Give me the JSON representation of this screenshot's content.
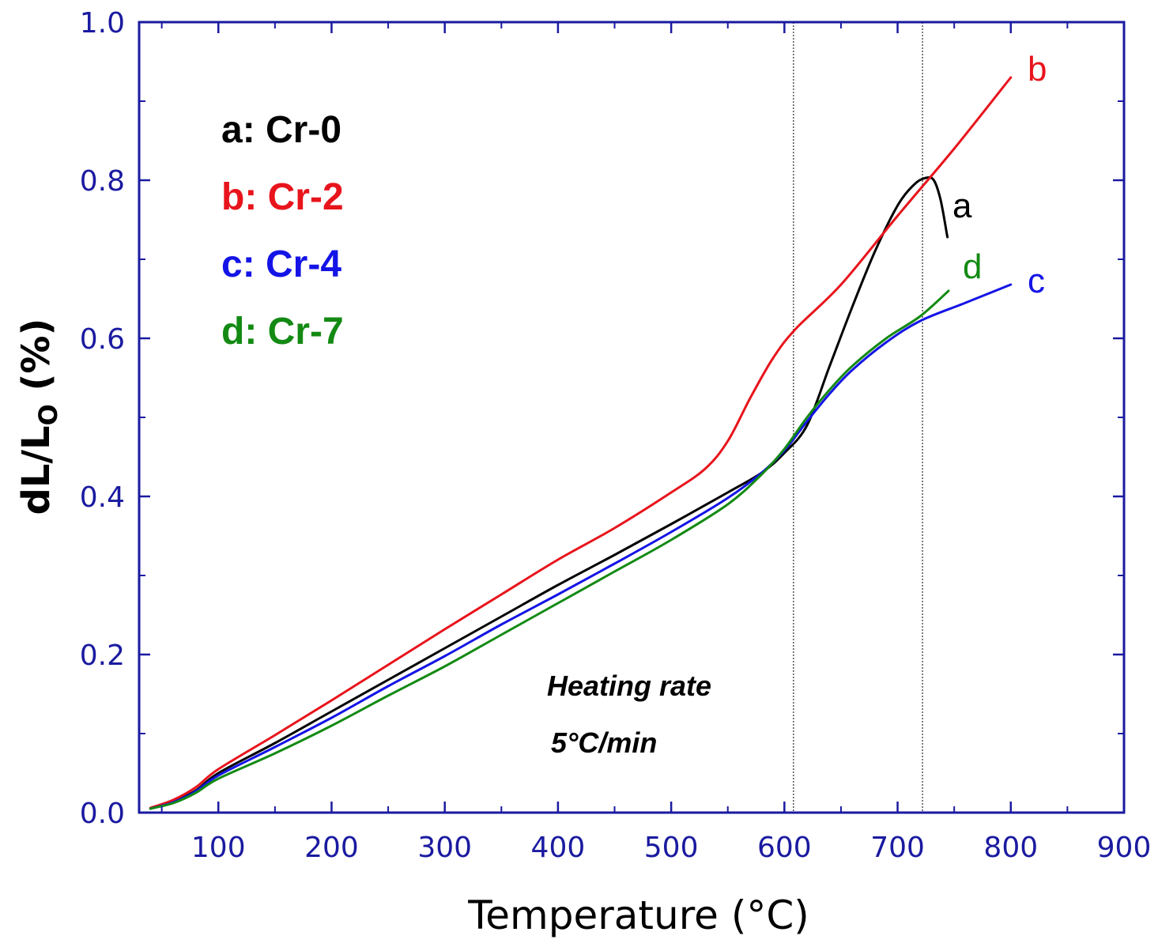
{
  "chart_data": {
    "type": "line",
    "xlabel": "Temperature (°C)",
    "ylabel": {
      "main": "dL/L",
      "sub": "O",
      "suffix": " (%)"
    },
    "xlim": [
      30,
      900
    ],
    "ylim": [
      0.0,
      1.0
    ],
    "xticks": [
      100,
      200,
      300,
      400,
      500,
      600,
      700,
      800,
      900
    ],
    "yticks": [
      0.0,
      0.2,
      0.4,
      0.6,
      0.8,
      1.0
    ],
    "xtick_labels": [
      "100",
      "200",
      "300",
      "400",
      "500",
      "600",
      "700",
      "800",
      "900"
    ],
    "ytick_labels": [
      "0.0",
      "0.2",
      "0.4",
      "0.6",
      "0.8",
      "1.0"
    ],
    "vertical_reference_lines": [
      608,
      722
    ],
    "legend_position": "top-left",
    "series": [
      {
        "name": "a: Cr-0",
        "curve_label": "a",
        "color": "#000000",
        "points": [
          [
            40,
            0.005
          ],
          [
            60,
            0.014
          ],
          [
            80,
            0.028
          ],
          [
            100,
            0.05
          ],
          [
            150,
            0.088
          ],
          [
            200,
            0.128
          ],
          [
            250,
            0.168
          ],
          [
            300,
            0.208
          ],
          [
            350,
            0.248
          ],
          [
            400,
            0.288
          ],
          [
            450,
            0.326
          ],
          [
            500,
            0.365
          ],
          [
            550,
            0.405
          ],
          [
            580,
            0.43
          ],
          [
            600,
            0.455
          ],
          [
            620,
            0.49
          ],
          [
            640,
            0.565
          ],
          [
            660,
            0.64
          ],
          [
            680,
            0.71
          ],
          [
            700,
            0.768
          ],
          [
            715,
            0.795
          ],
          [
            725,
            0.803
          ],
          [
            732,
            0.8
          ],
          [
            738,
            0.775
          ],
          [
            744,
            0.728
          ]
        ]
      },
      {
        "name": "b: Cr-2",
        "curve_label": "b",
        "color": "#e8141c",
        "points": [
          [
            40,
            0.006
          ],
          [
            60,
            0.016
          ],
          [
            80,
            0.032
          ],
          [
            100,
            0.055
          ],
          [
            150,
            0.098
          ],
          [
            200,
            0.142
          ],
          [
            250,
            0.187
          ],
          [
            300,
            0.232
          ],
          [
            350,
            0.276
          ],
          [
            400,
            0.32
          ],
          [
            450,
            0.36
          ],
          [
            500,
            0.405
          ],
          [
            530,
            0.435
          ],
          [
            550,
            0.47
          ],
          [
            570,
            0.525
          ],
          [
            590,
            0.575
          ],
          [
            610,
            0.612
          ],
          [
            650,
            0.668
          ],
          [
            700,
            0.755
          ],
          [
            750,
            0.84
          ],
          [
            800,
            0.93
          ]
        ]
      },
      {
        "name": "c: Cr-4",
        "curve_label": "c",
        "color": "#1414e6",
        "points": [
          [
            40,
            0.005
          ],
          [
            60,
            0.013
          ],
          [
            80,
            0.027
          ],
          [
            100,
            0.047
          ],
          [
            150,
            0.083
          ],
          [
            200,
            0.12
          ],
          [
            250,
            0.16
          ],
          [
            300,
            0.198
          ],
          [
            350,
            0.238
          ],
          [
            400,
            0.276
          ],
          [
            450,
            0.315
          ],
          [
            500,
            0.355
          ],
          [
            550,
            0.398
          ],
          [
            580,
            0.43
          ],
          [
            600,
            0.458
          ],
          [
            620,
            0.495
          ],
          [
            640,
            0.53
          ],
          [
            660,
            0.56
          ],
          [
            690,
            0.595
          ],
          [
            720,
            0.622
          ],
          [
            760,
            0.645
          ],
          [
            800,
            0.668
          ]
        ]
      },
      {
        "name": "d: Cr-7",
        "curve_label": "d",
        "color": "#138a13",
        "points": [
          [
            40,
            0.005
          ],
          [
            60,
            0.012
          ],
          [
            80,
            0.025
          ],
          [
            100,
            0.043
          ],
          [
            150,
            0.075
          ],
          [
            200,
            0.11
          ],
          [
            250,
            0.148
          ],
          [
            300,
            0.185
          ],
          [
            350,
            0.225
          ],
          [
            400,
            0.265
          ],
          [
            450,
            0.305
          ],
          [
            500,
            0.345
          ],
          [
            550,
            0.39
          ],
          [
            580,
            0.428
          ],
          [
            600,
            0.46
          ],
          [
            620,
            0.5
          ],
          [
            640,
            0.535
          ],
          [
            660,
            0.565
          ],
          [
            690,
            0.6
          ],
          [
            720,
            0.628
          ],
          [
            745,
            0.66
          ]
        ]
      }
    ],
    "annotations": [
      "Heating rate",
      "5°C/min"
    ]
  }
}
